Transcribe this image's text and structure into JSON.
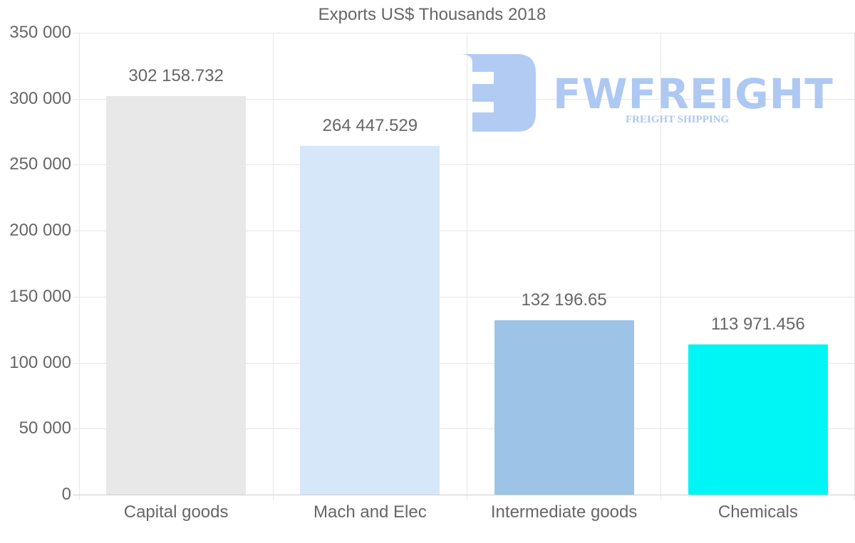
{
  "chart_data": {
    "type": "bar",
    "title": "Exports US$ Thousands 2018",
    "xlabel": "",
    "ylabel": "",
    "categories": [
      "Capital goods",
      "Mach and Elec",
      "Intermediate goods",
      "Chemicals"
    ],
    "values": [
      302158.732,
      264447.529,
      132196.65,
      113971.456
    ],
    "value_labels": [
      "302 158.732",
      "264 447.529",
      "132 196.65",
      "113 971.456"
    ],
    "bar_colors": [
      "#e8e8e8",
      "#d6e7f9",
      "#9dc3e6",
      "#00f5f5"
    ],
    "ylim": [
      0,
      350000
    ],
    "yticks": [
      0,
      50000,
      100000,
      150000,
      200000,
      250000,
      300000,
      350000
    ],
    "ytick_labels": [
      "0",
      "50 000",
      "100 000",
      "150 000",
      "200 000",
      "250 000",
      "300 000",
      "350 000"
    ],
    "grid": true,
    "legend": null
  },
  "watermark": {
    "brand": "FWFREIGHT",
    "tagline": "FREIGHT SHIPPING",
    "color": "#adc8f2"
  }
}
